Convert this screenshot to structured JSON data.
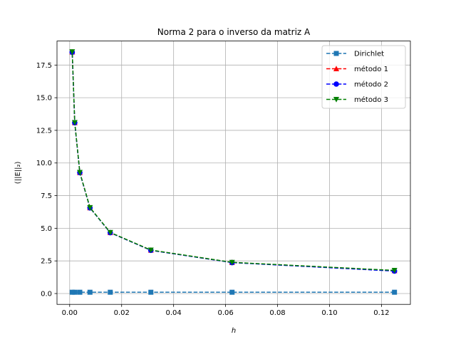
{
  "chart_data": {
    "type": "line",
    "title": "Norma 2 para o inverso da matriz A",
    "xlabel": "h",
    "ylabel": "(||E||₂)",
    "xlim": [
      -0.004875,
      0.131125
    ],
    "ylim": [
      -0.83,
      19.34
    ],
    "xticks": [
      0.0,
      0.02,
      0.04,
      0.06,
      0.08,
      0.1,
      0.12
    ],
    "xtick_labels": [
      "0.00",
      "0.02",
      "0.04",
      "0.06",
      "0.08",
      "0.10",
      "0.12"
    ],
    "yticks": [
      0.0,
      2.5,
      5.0,
      7.5,
      10.0,
      12.5,
      15.0,
      17.5
    ],
    "ytick_labels": [
      "0.0",
      "2.5",
      "5.0",
      "7.5",
      "10.0",
      "12.5",
      "15.0",
      "17.5"
    ],
    "grid": true,
    "legend_position": "top-right",
    "x": [
      0.125,
      0.0625,
      0.03125,
      0.015625,
      0.0078125,
      0.00390625,
      0.001953125,
      0.0009765625
    ],
    "series": [
      {
        "name": "Dirichlet",
        "color": "#1f77b4",
        "marker": "square",
        "values": [
          0.1,
          0.1,
          0.1,
          0.1,
          0.1,
          0.1,
          0.1,
          0.1
        ]
      },
      {
        "name": "método 1",
        "color": "#ff0000",
        "marker": "triangle-up",
        "values": [
          1.75,
          2.38,
          3.32,
          4.67,
          6.57,
          9.27,
          13.09,
          18.5
        ]
      },
      {
        "name": "método 2",
        "color": "#0000ff",
        "marker": "circle",
        "values": [
          1.72,
          2.37,
          3.31,
          4.66,
          6.56,
          9.26,
          13.08,
          18.48
        ]
      },
      {
        "name": "método 3",
        "color": "#008000",
        "marker": "triangle-down",
        "values": [
          1.77,
          2.39,
          3.33,
          4.68,
          6.58,
          9.28,
          13.1,
          18.52
        ]
      }
    ]
  }
}
